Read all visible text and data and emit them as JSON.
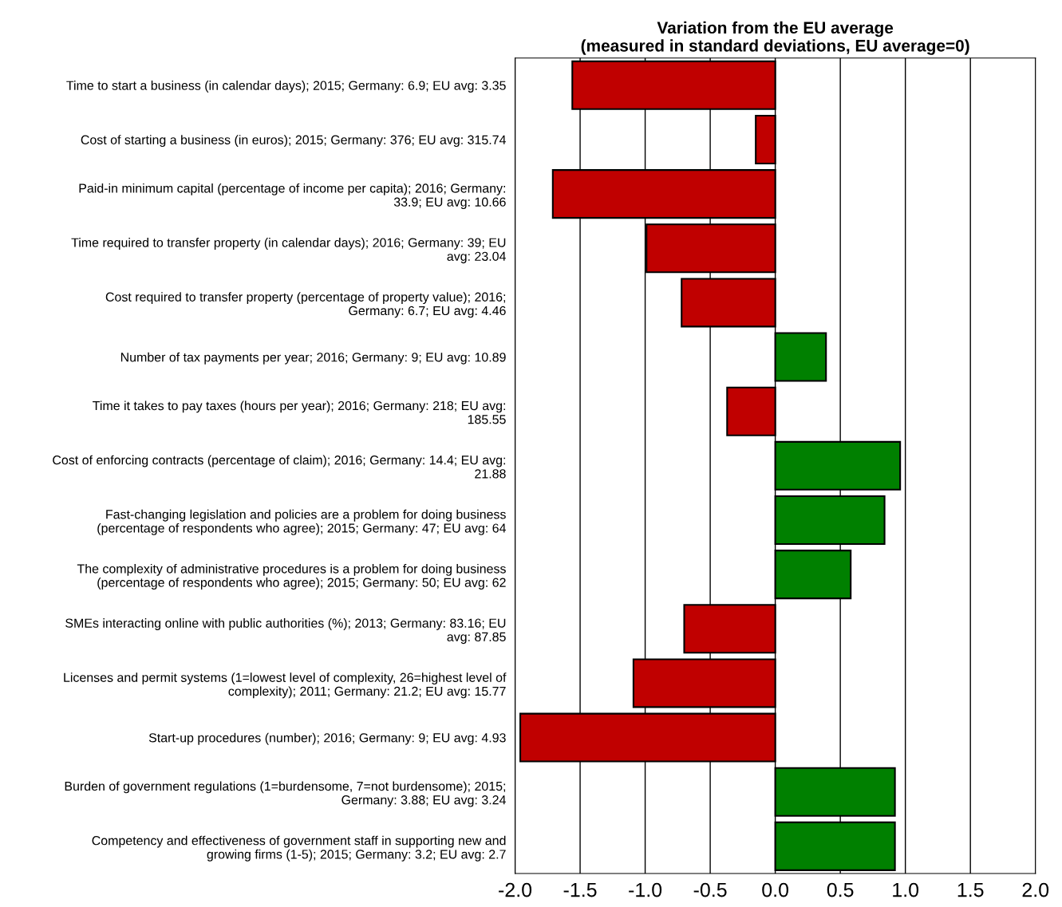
{
  "chart_data": {
    "type": "bar",
    "orientation": "horizontal",
    "title": "Variation from the EU average\n(measured in standard deviations, EU average=0)",
    "categories": [
      "Time to start a business (in calendar days); 2015; Germany: 6.9; EU avg: 3.35",
      "Cost of starting a business (in euros); 2015; Germany: 376; EU avg: 315.74",
      "Paid-in minimum capital (percentage of income per capita); 2016; Germany:\n33.9; EU avg: 10.66",
      "Time required to transfer property (in calendar days); 2016; Germany: 39; EU\navg: 23.04",
      "Cost required to transfer property (percentage of property value); 2016;\nGermany: 6.7; EU avg: 4.46",
      "Number of tax payments per year; 2016; Germany: 9; EU avg: 10.89",
      "Time it takes to pay taxes (hours per year); 2016; Germany: 218; EU avg:\n185.55",
      "Cost of enforcing contracts (percentage of claim); 2016; Germany: 14.4; EU avg:\n21.88",
      "Fast-changing legislation and policies are a problem for doing business\n(percentage of respondents who agree); 2015; Germany: 47; EU avg: 64",
      "The complexity of administrative procedures is a problem for doing business\n(percentage of respondents who agree); 2015; Germany: 50; EU avg: 62",
      "SMEs interacting online with public authorities (%); 2013; Germany: 83.16; EU\navg: 87.85",
      "Licenses and permit systems (1=lowest level of complexity, 26=highest level of\ncomplexity); 2011; Germany: 21.2; EU avg: 15.77",
      "Start-up procedures (number); 2016; Germany: 9; EU avg: 4.93",
      "Burden of government regulations (1=burdensome, 7=not burdensome); 2015;\nGermany: 3.88; EU avg: 3.24",
      "Competency and effectiveness of government staff in supporting new and\ngrowing firms (1-5); 2015; Germany: 3.2; EU avg: 2.7"
    ],
    "values": [
      -1.56,
      -0.15,
      -1.71,
      -0.99,
      -0.72,
      0.39,
      -0.37,
      0.96,
      0.84,
      0.58,
      -0.7,
      -1.09,
      -1.96,
      0.92,
      0.92
    ],
    "colors": [
      "#c00000",
      "#c00000",
      "#c00000",
      "#c00000",
      "#c00000",
      "#008000",
      "#c00000",
      "#008000",
      "#008000",
      "#008000",
      "#c00000",
      "#c00000",
      "#c00000",
      "#008000",
      "#008000"
    ],
    "xlim": [
      -2.0,
      2.0
    ],
    "xticks": [
      {
        "value": -2.0,
        "label": "-2.0"
      },
      {
        "value": -1.5,
        "label": "-1.5"
      },
      {
        "value": -1.0,
        "label": "-1.0"
      },
      {
        "value": -0.5,
        "label": "-0.5"
      },
      {
        "value": 0.0,
        "label": "0.0"
      },
      {
        "value": 0.5,
        "label": "0.5"
      },
      {
        "value": 1.0,
        "label": "1.0"
      },
      {
        "value": 1.5,
        "label": "1.5"
      },
      {
        "value": 2.0,
        "label": "2.0"
      }
    ],
    "grid": "x"
  }
}
